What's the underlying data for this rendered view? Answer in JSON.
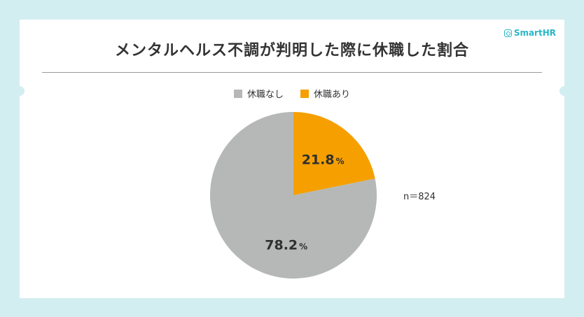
{
  "brand": "SmartHR",
  "colors": {
    "no_leave": "#b5b8b6",
    "leave": "#f5a000",
    "background": "#d3eef1",
    "brand": "#27b7c7"
  },
  "chart_data": {
    "type": "pie",
    "title": "メンタルヘルス不調が判明した際に休職した割合",
    "categories": [
      "休職なし",
      "休職あり"
    ],
    "values": [
      78.2,
      21.8
    ],
    "value_labels": [
      "78.2",
      "21.8"
    ],
    "unit": "%",
    "legend_position": "top",
    "annotation": "n＝824"
  }
}
